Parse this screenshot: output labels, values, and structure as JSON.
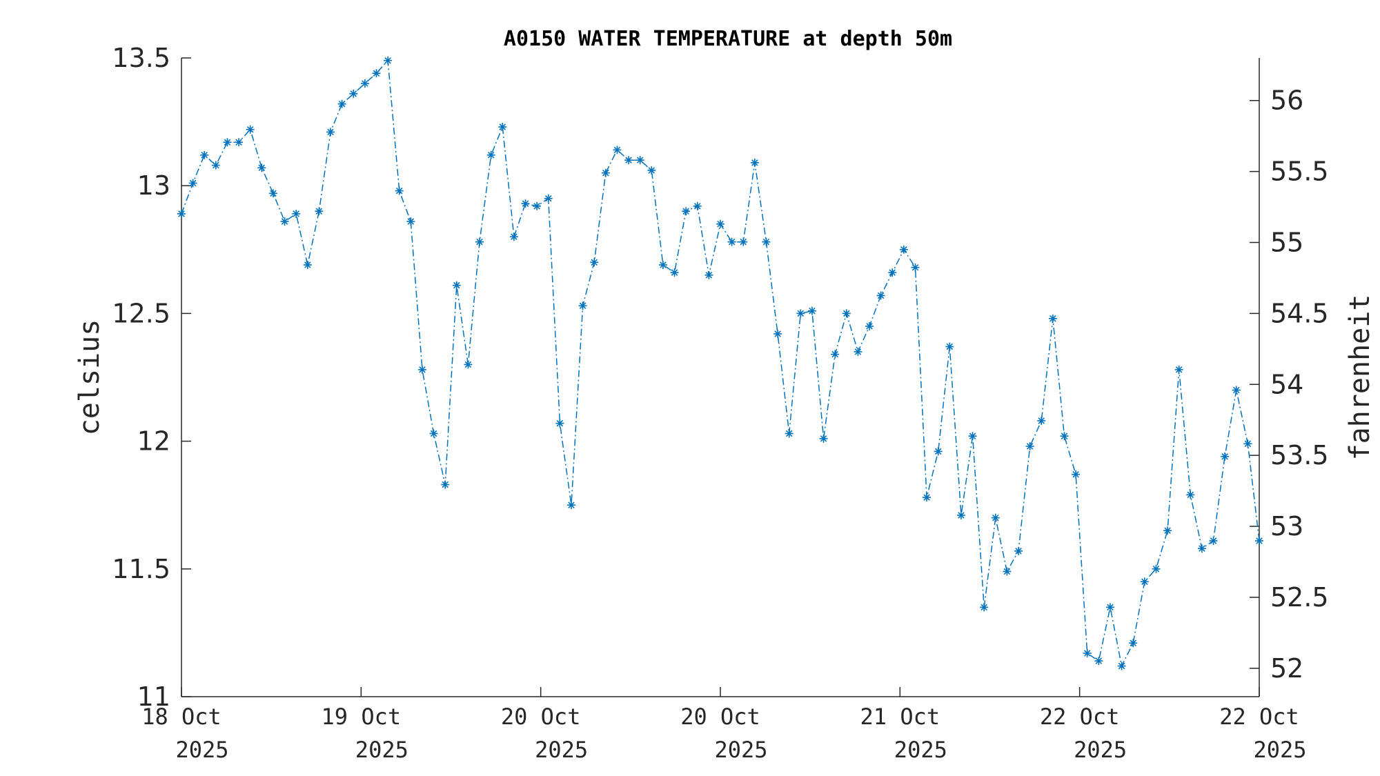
{
  "chart_data": {
    "type": "line",
    "title": "A0150 WATER TEMPERATURE at depth 50m",
    "ylabel": "celsius",
    "ylabel_right": "fahrenheit",
    "ylim": [
      11,
      13.5
    ],
    "yticks": [
      "11",
      "11.5",
      "12",
      "12.5",
      "13",
      "13.5"
    ],
    "ylim_right": [
      51.8,
      56.3
    ],
    "yticks_right": [
      "52",
      "52.5",
      "53",
      "53.5",
      "54",
      "54.5",
      "55",
      "55.5",
      "56"
    ],
    "xticks": [
      {
        "line1": "18 Oct",
        "line2": "2025"
      },
      {
        "line1": "19 Oct",
        "line2": "2025"
      },
      {
        "line1": "20 Oct",
        "line2": "2025"
      },
      {
        "line1": "20 Oct",
        "line2": "2025"
      },
      {
        "line1": "21 Oct",
        "line2": "2025"
      },
      {
        "line1": "22 Oct",
        "line2": "2025"
      },
      {
        "line1": "22 Oct",
        "line2": "2025"
      }
    ],
    "series_color": "#0072BD",
    "marker": "asterisk",
    "line_style": "dash-dot",
    "grid": false,
    "legend": "none",
    "values": [
      12.89,
      13.01,
      13.12,
      13.08,
      13.17,
      13.17,
      13.22,
      13.07,
      12.97,
      12.86,
      12.89,
      12.69,
      12.9,
      13.21,
      13.32,
      13.36,
      13.4,
      13.44,
      13.49,
      12.98,
      12.86,
      12.28,
      12.03,
      11.83,
      12.61,
      12.3,
      12.78,
      13.12,
      13.23,
      12.8,
      12.93,
      12.92,
      12.95,
      12.07,
      11.75,
      12.53,
      12.7,
      13.05,
      13.14,
      13.1,
      13.1,
      13.06,
      12.69,
      12.66,
      12.9,
      12.92,
      12.65,
      12.85,
      12.78,
      12.78,
      13.09,
      12.78,
      12.42,
      12.03,
      12.5,
      12.51,
      12.01,
      12.34,
      12.5,
      12.35,
      12.45,
      12.57,
      12.66,
      12.75,
      12.68,
      11.78,
      11.96,
      12.37,
      11.71,
      12.02,
      11.35,
      11.7,
      11.49,
      11.57,
      11.98,
      12.08,
      12.48,
      12.02,
      11.87,
      11.17,
      11.14,
      11.35,
      11.12,
      11.21,
      11.45,
      11.5,
      11.65,
      12.28,
      11.79,
      11.58,
      11.61,
      11.94,
      12.2,
      11.99,
      11.61
    ]
  }
}
